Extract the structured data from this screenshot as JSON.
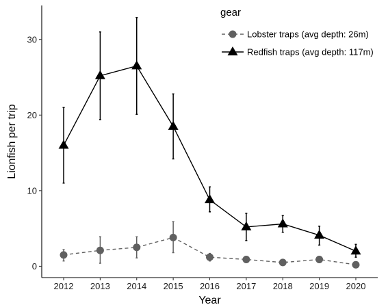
{
  "chart_data": {
    "type": "line",
    "xlabel": "Year",
    "ylabel": "Lionfish per trip",
    "x": [
      2012,
      2013,
      2014,
      2015,
      2016,
      2017,
      2018,
      2019,
      2020
    ],
    "ylim": [
      -1.5,
      34.5
    ],
    "yticks": [
      0,
      10,
      20,
      30
    ],
    "grid": false,
    "legend": {
      "title": "gear",
      "placement": "top-right-inside"
    },
    "series": [
      {
        "name": "Lobster traps (avg depth: 26m)",
        "marker": "circle",
        "line": "dashed",
        "color": "#606060",
        "values": [
          1.5,
          2.1,
          2.5,
          3.8,
          1.2,
          0.9,
          0.5,
          0.9,
          0.2
        ],
        "error_low": [
          0.7,
          0.4,
          1.1,
          1.8,
          0.7,
          0.5,
          0.3,
          0.5,
          0.1
        ],
        "error_high": [
          2.2,
          3.9,
          3.9,
          5.9,
          1.7,
          1.3,
          0.7,
          1.3,
          0.4
        ]
      },
      {
        "name": "Redfish traps (avg depth: 117m)",
        "marker": "triangle",
        "line": "solid",
        "color": "#000000",
        "values": [
          16.0,
          25.2,
          26.5,
          18.5,
          8.8,
          5.2,
          5.6,
          4.1,
          2.0
        ],
        "error_low": [
          11.0,
          19.4,
          20.1,
          14.2,
          7.2,
          3.4,
          4.5,
          2.8,
          1.2
        ],
        "error_high": [
          21.0,
          31.0,
          32.9,
          22.8,
          10.5,
          7.0,
          6.7,
          5.3,
          2.9
        ]
      }
    ]
  }
}
